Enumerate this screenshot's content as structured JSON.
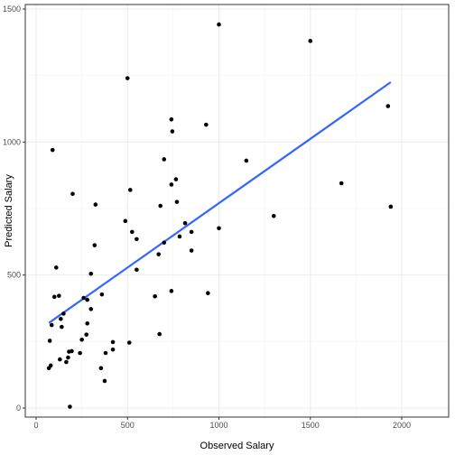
{
  "chart_data": {
    "type": "scatter",
    "xlabel": "Observed Salary",
    "ylabel": "Predicted Salary",
    "xlim": [
      0,
      2000
    ],
    "ylim": [
      -20,
      1520
    ],
    "x_ticks": [
      {
        "value": 0,
        "label": "0"
      },
      {
        "value": 500,
        "label": "500"
      },
      {
        "value": 1000,
        "label": "1000"
      },
      {
        "value": 1500,
        "label": "1500"
      },
      {
        "value": 2000,
        "label": "2000"
      }
    ],
    "y_ticks": [
      {
        "value": 0,
        "label": "0"
      },
      {
        "value": 500,
        "label": "500"
      },
      {
        "value": 1000,
        "label": "1000"
      },
      {
        "value": 1500,
        "label": "1500"
      }
    ],
    "grid": true,
    "points": [
      {
        "x": 1000,
        "y": 1442
      },
      {
        "x": 1500,
        "y": 1380
      },
      {
        "x": 500,
        "y": 1240
      },
      {
        "x": 1925,
        "y": 1135
      },
      {
        "x": 740,
        "y": 1085
      },
      {
        "x": 930,
        "y": 1065
      },
      {
        "x": 745,
        "y": 1040
      },
      {
        "x": 90,
        "y": 970
      },
      {
        "x": 700,
        "y": 935
      },
      {
        "x": 1150,
        "y": 930
      },
      {
        "x": 765,
        "y": 860
      },
      {
        "x": 1670,
        "y": 845
      },
      {
        "x": 740,
        "y": 840
      },
      {
        "x": 515,
        "y": 820
      },
      {
        "x": 200,
        "y": 805
      },
      {
        "x": 770,
        "y": 775
      },
      {
        "x": 325,
        "y": 765
      },
      {
        "x": 680,
        "y": 760
      },
      {
        "x": 1940,
        "y": 757
      },
      {
        "x": 1300,
        "y": 722
      },
      {
        "x": 488,
        "y": 703
      },
      {
        "x": 815,
        "y": 695
      },
      {
        "x": 1000,
        "y": 676
      },
      {
        "x": 850,
        "y": 662
      },
      {
        "x": 525,
        "y": 662
      },
      {
        "x": 785,
        "y": 645
      },
      {
        "x": 550,
        "y": 635
      },
      {
        "x": 700,
        "y": 622
      },
      {
        "x": 320,
        "y": 612
      },
      {
        "x": 850,
        "y": 592
      },
      {
        "x": 670,
        "y": 578
      },
      {
        "x": 110,
        "y": 528
      },
      {
        "x": 550,
        "y": 520
      },
      {
        "x": 300,
        "y": 505
      },
      {
        "x": 740,
        "y": 440
      },
      {
        "x": 940,
        "y": 432
      },
      {
        "x": 360,
        "y": 427
      },
      {
        "x": 125,
        "y": 422
      },
      {
        "x": 650,
        "y": 420
      },
      {
        "x": 100,
        "y": 418
      },
      {
        "x": 260,
        "y": 414
      },
      {
        "x": 280,
        "y": 407
      },
      {
        "x": 300,
        "y": 372
      },
      {
        "x": 150,
        "y": 355
      },
      {
        "x": 135,
        "y": 335
      },
      {
        "x": 280,
        "y": 318
      },
      {
        "x": 85,
        "y": 312
      },
      {
        "x": 140,
        "y": 305
      },
      {
        "x": 675,
        "y": 278
      },
      {
        "x": 275,
        "y": 276
      },
      {
        "x": 250,
        "y": 257
      },
      {
        "x": 75,
        "y": 253
      },
      {
        "x": 420,
        "y": 248
      },
      {
        "x": 510,
        "y": 246
      },
      {
        "x": 420,
        "y": 220
      },
      {
        "x": 195,
        "y": 214
      },
      {
        "x": 180,
        "y": 212
      },
      {
        "x": 240,
        "y": 207
      },
      {
        "x": 380,
        "y": 207
      },
      {
        "x": 175,
        "y": 190
      },
      {
        "x": 130,
        "y": 183
      },
      {
        "x": 165,
        "y": 173
      },
      {
        "x": 80,
        "y": 160
      },
      {
        "x": 70,
        "y": 150
      },
      {
        "x": 355,
        "y": 150
      },
      {
        "x": 375,
        "y": 102
      },
      {
        "x": 185,
        "y": 5
      }
    ],
    "fit_line": {
      "x": [
        70,
        1940
      ],
      "y": [
        320,
        1225
      ],
      "color": "#3366ff"
    },
    "colors": {
      "panel_background": "#ffffff",
      "panel_border": "#333333",
      "grid_major": "#ebebeb",
      "grid_minor": "#f5f5f5",
      "point": "#000000"
    }
  }
}
